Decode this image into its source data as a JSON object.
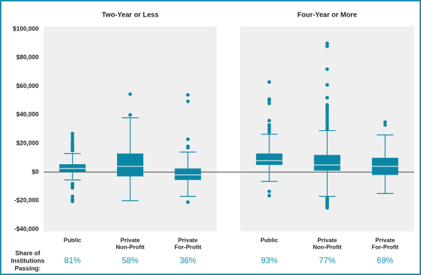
{
  "chart_data": {
    "type": "box",
    "color": "#0b87a5",
    "zero_line": true,
    "ylim": [
      -40000,
      100000
    ],
    "yticks": [
      {
        "value": 100000,
        "label": "$100,000"
      },
      {
        "value": 80000,
        "label": "$80,000"
      },
      {
        "value": 60000,
        "label": "$60,000"
      },
      {
        "value": 40000,
        "label": "$40,000"
      },
      {
        "value": 20000,
        "label": "$20,000"
      },
      {
        "value": 0,
        "label": "$0"
      },
      {
        "value": -20000,
        "label": "-$20,000"
      },
      {
        "value": -40000,
        "label": "-$40,000"
      }
    ],
    "share_title": [
      "Share of",
      "Institutions",
      "Passing:"
    ],
    "panels": [
      {
        "title": "Two-Year or Less",
        "categories": [
          [
            "Public"
          ],
          [
            "Private",
            "Non-Profit"
          ],
          [
            "Private",
            "For-Profit"
          ]
        ],
        "share": [
          "81%",
          "58%",
          "36%"
        ],
        "boxes": [
          {
            "min": -5500,
            "q1": 0,
            "median": 2500,
            "q3": 5500,
            "max": 13000,
            "outliers": [
              15000,
              16000,
              17000,
              18000,
              19000,
              20000,
              21000,
              23000,
              25000,
              27000,
              -8000,
              -9000,
              -10000,
              -11000,
              -17000,
              -19000,
              -20500
            ]
          },
          {
            "min": -20000,
            "q1": -3000,
            "median": 4000,
            "q3": 13000,
            "max": 38000,
            "outliers": [
              40000,
              54500
            ]
          },
          {
            "min": -17000,
            "q1": -5500,
            "median": -2000,
            "q3": 2500,
            "max": 14000,
            "outliers": [
              17000,
              18000,
              23000,
              49500,
              54000,
              -21000
            ]
          }
        ]
      },
      {
        "title": "Four-Year or More",
        "categories": [
          [
            "Public"
          ],
          [
            "Private",
            "Non-Profit"
          ],
          [
            "Private",
            "For-Profit"
          ]
        ],
        "share": [
          "93%",
          "77%",
          "69%"
        ],
        "boxes": [
          {
            "min": -6500,
            "q1": 5000,
            "median": 8000,
            "q3": 13000,
            "max": 26500,
            "outliers": [
              28000,
              30000,
              32000,
              33000,
              36000,
              48000,
              50000,
              51000,
              63000,
              -13500,
              -16500
            ]
          },
          {
            "min": -17000,
            "q1": 1000,
            "median": 5000,
            "q3": 12000,
            "max": 29000,
            "outliers": [
              30000,
              32000,
              34000,
              36000,
              38000,
              40000,
              42000,
              44000,
              46000,
              47000,
              52000,
              61000,
              72000,
              88000,
              90000,
              -18000,
              -19000,
              -20000,
              -21000,
              -22000,
              -23000,
              -24000,
              -25000
            ]
          },
          {
            "min": -15000,
            "q1": -2000,
            "median": 4000,
            "q3": 10000,
            "max": 26000,
            "outliers": [
              33000,
              35000
            ]
          }
        ]
      }
    ]
  }
}
